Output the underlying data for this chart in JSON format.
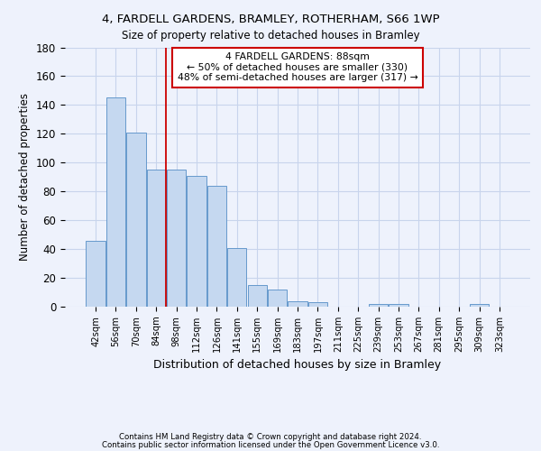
{
  "title1": "4, FARDELL GARDENS, BRAMLEY, ROTHERHAM, S66 1WP",
  "title2": "Size of property relative to detached houses in Bramley",
  "xlabel": "Distribution of detached houses by size in Bramley",
  "ylabel": "Number of detached properties",
  "categories": [
    "42sqm",
    "56sqm",
    "70sqm",
    "84sqm",
    "98sqm",
    "112sqm",
    "126sqm",
    "141sqm",
    "155sqm",
    "169sqm",
    "183sqm",
    "197sqm",
    "211sqm",
    "225sqm",
    "239sqm",
    "253sqm",
    "267sqm",
    "281sqm",
    "295sqm",
    "309sqm",
    "323sqm"
  ],
  "values": [
    46,
    145,
    121,
    95,
    95,
    91,
    84,
    41,
    15,
    12,
    4,
    3,
    0,
    0,
    2,
    2,
    0,
    0,
    0,
    2,
    0
  ],
  "bar_color": "#c5d8f0",
  "bar_edge_color": "#6699cc",
  "property_line_x": 3.5,
  "annotation_title": "4 FARDELL GARDENS: 88sqm",
  "annotation_line1": "← 50% of detached houses are smaller (330)",
  "annotation_line2": "48% of semi-detached houses are larger (317) →",
  "annotation_box_color": "#ffffff",
  "annotation_box_edge_color": "#cc0000",
  "vline_color": "#cc0000",
  "ylim": [
    0,
    180
  ],
  "yticks": [
    0,
    20,
    40,
    60,
    80,
    100,
    120,
    140,
    160,
    180
  ],
  "footer1": "Contains HM Land Registry data © Crown copyright and database right 2024.",
  "footer2": "Contains public sector information licensed under the Open Government Licence v3.0.",
  "bg_color": "#eef2fc",
  "grid_color": "#c8d4ec"
}
